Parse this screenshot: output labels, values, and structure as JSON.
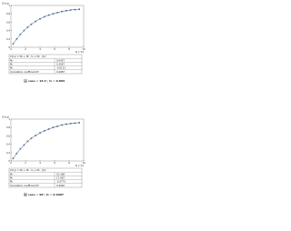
{
  "chart_data": [
    {
      "type": "scatter",
      "y_label": "Cm,p",
      "x_label": "t₀ (°C)",
      "x": [
        0.3,
        0.8,
        1.3,
        1.8,
        2.3,
        2.8,
        3.4,
        4.0,
        4.6,
        5.2,
        5.8,
        6.4,
        7.0,
        7.6,
        8.2,
        8.8,
        9.4
      ],
      "series": [
        {
          "color": "#3a6ea5",
          "values": [
            0.08,
            0.2,
            0.31,
            0.4,
            0.48,
            0.55,
            0.62,
            0.68,
            0.73,
            0.77,
            0.8,
            0.83,
            0.855,
            0.875,
            0.89,
            0.9,
            0.91
          ]
        }
      ],
      "fit_color": "#222222",
      "xlim": [
        0,
        10
      ],
      "ylim": [
        0,
        1
      ],
      "xticks": [
        0,
        2,
        4,
        6,
        8,
        10
      ],
      "yticks": [
        0,
        0.2,
        0.4,
        0.6,
        0.8,
        1
      ],
      "table": {
        "header": "Cm,p = M₀ + M₁ · t₀ + M₂ · (t₀)²",
        "rows": [
          [
            "M₀",
            "0.0457"
          ],
          [
            "M₁",
            "0.2067"
          ],
          [
            "M₂",
            "-0.0121"
          ],
          [
            "Correlation coefficient R²",
            "0.9987"
          ]
        ]
      },
      "caption_letter": "a",
      "caption": "case = 15.1°, t₀ = 0.805"
    },
    {
      "type": "scatter",
      "y_label": "Cm,p",
      "x_label": "t₀ (°C)",
      "x": [
        0.3,
        0.8,
        1.3,
        1.8,
        2.3,
        2.8,
        3.4,
        4.0,
        4.6,
        5.2,
        5.8,
        6.4,
        7.0,
        7.6,
        8.2,
        8.8,
        9.4
      ],
      "series": [
        {
          "color": "#3a6ea5",
          "values": [
            0.06,
            0.18,
            0.29,
            0.38,
            0.47,
            0.54,
            0.61,
            0.67,
            0.72,
            0.76,
            0.8,
            0.83,
            0.86,
            0.88,
            0.895,
            0.905,
            0.915
          ]
        }
      ],
      "fit_color": "#222222",
      "xlim": [
        0,
        10
      ],
      "ylim": [
        0,
        1
      ],
      "xticks": [
        0,
        2,
        4,
        6,
        8,
        10
      ],
      "yticks": [
        0,
        0.2,
        0.4,
        0.6,
        0.8,
        1
      ],
      "table": {
        "header": "Cm,p = M₀ + M₁ · t₀ + M₂ · (t₀)²",
        "rows": [
          [
            "M₀",
            "10.368"
          ],
          [
            "M₁",
            "17.987"
          ],
          [
            "M₂",
            "-0.2773"
          ],
          [
            "Correlation coefficient R²",
            "0.9992"
          ]
        ]
      },
      "caption_letter": "b",
      "caption": "case = 90°, t₀ = 0.9987"
    }
  ]
}
